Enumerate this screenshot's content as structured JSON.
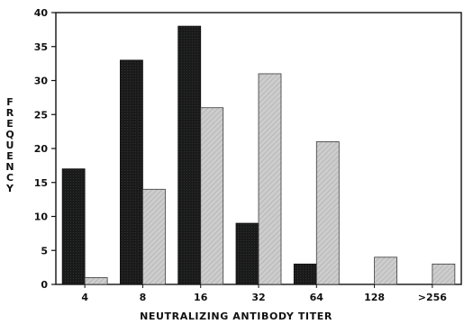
{
  "chart_data": {
    "type": "bar",
    "title": "",
    "xlabel": "NEUTRALIZING ANTIBODY TITER",
    "ylabel": "FREQUENCY",
    "categories": [
      "4",
      "8",
      "16",
      "32",
      "64",
      "128",
      ">256"
    ],
    "series": [
      {
        "values": [
          17,
          33,
          38,
          9,
          3,
          0,
          0
        ]
      },
      {
        "values": [
          1,
          14,
          26,
          31,
          21,
          4,
          3
        ]
      }
    ],
    "ylim": [
      0,
      40
    ],
    "yticks": [
      0,
      5,
      10,
      15,
      20,
      25,
      30,
      35,
      40
    ],
    "grid": false,
    "legend": "none",
    "colors": {
      "series_dark": "#1c1c1c",
      "series_light": "#c9c9c9",
      "axis": "#111111"
    }
  }
}
